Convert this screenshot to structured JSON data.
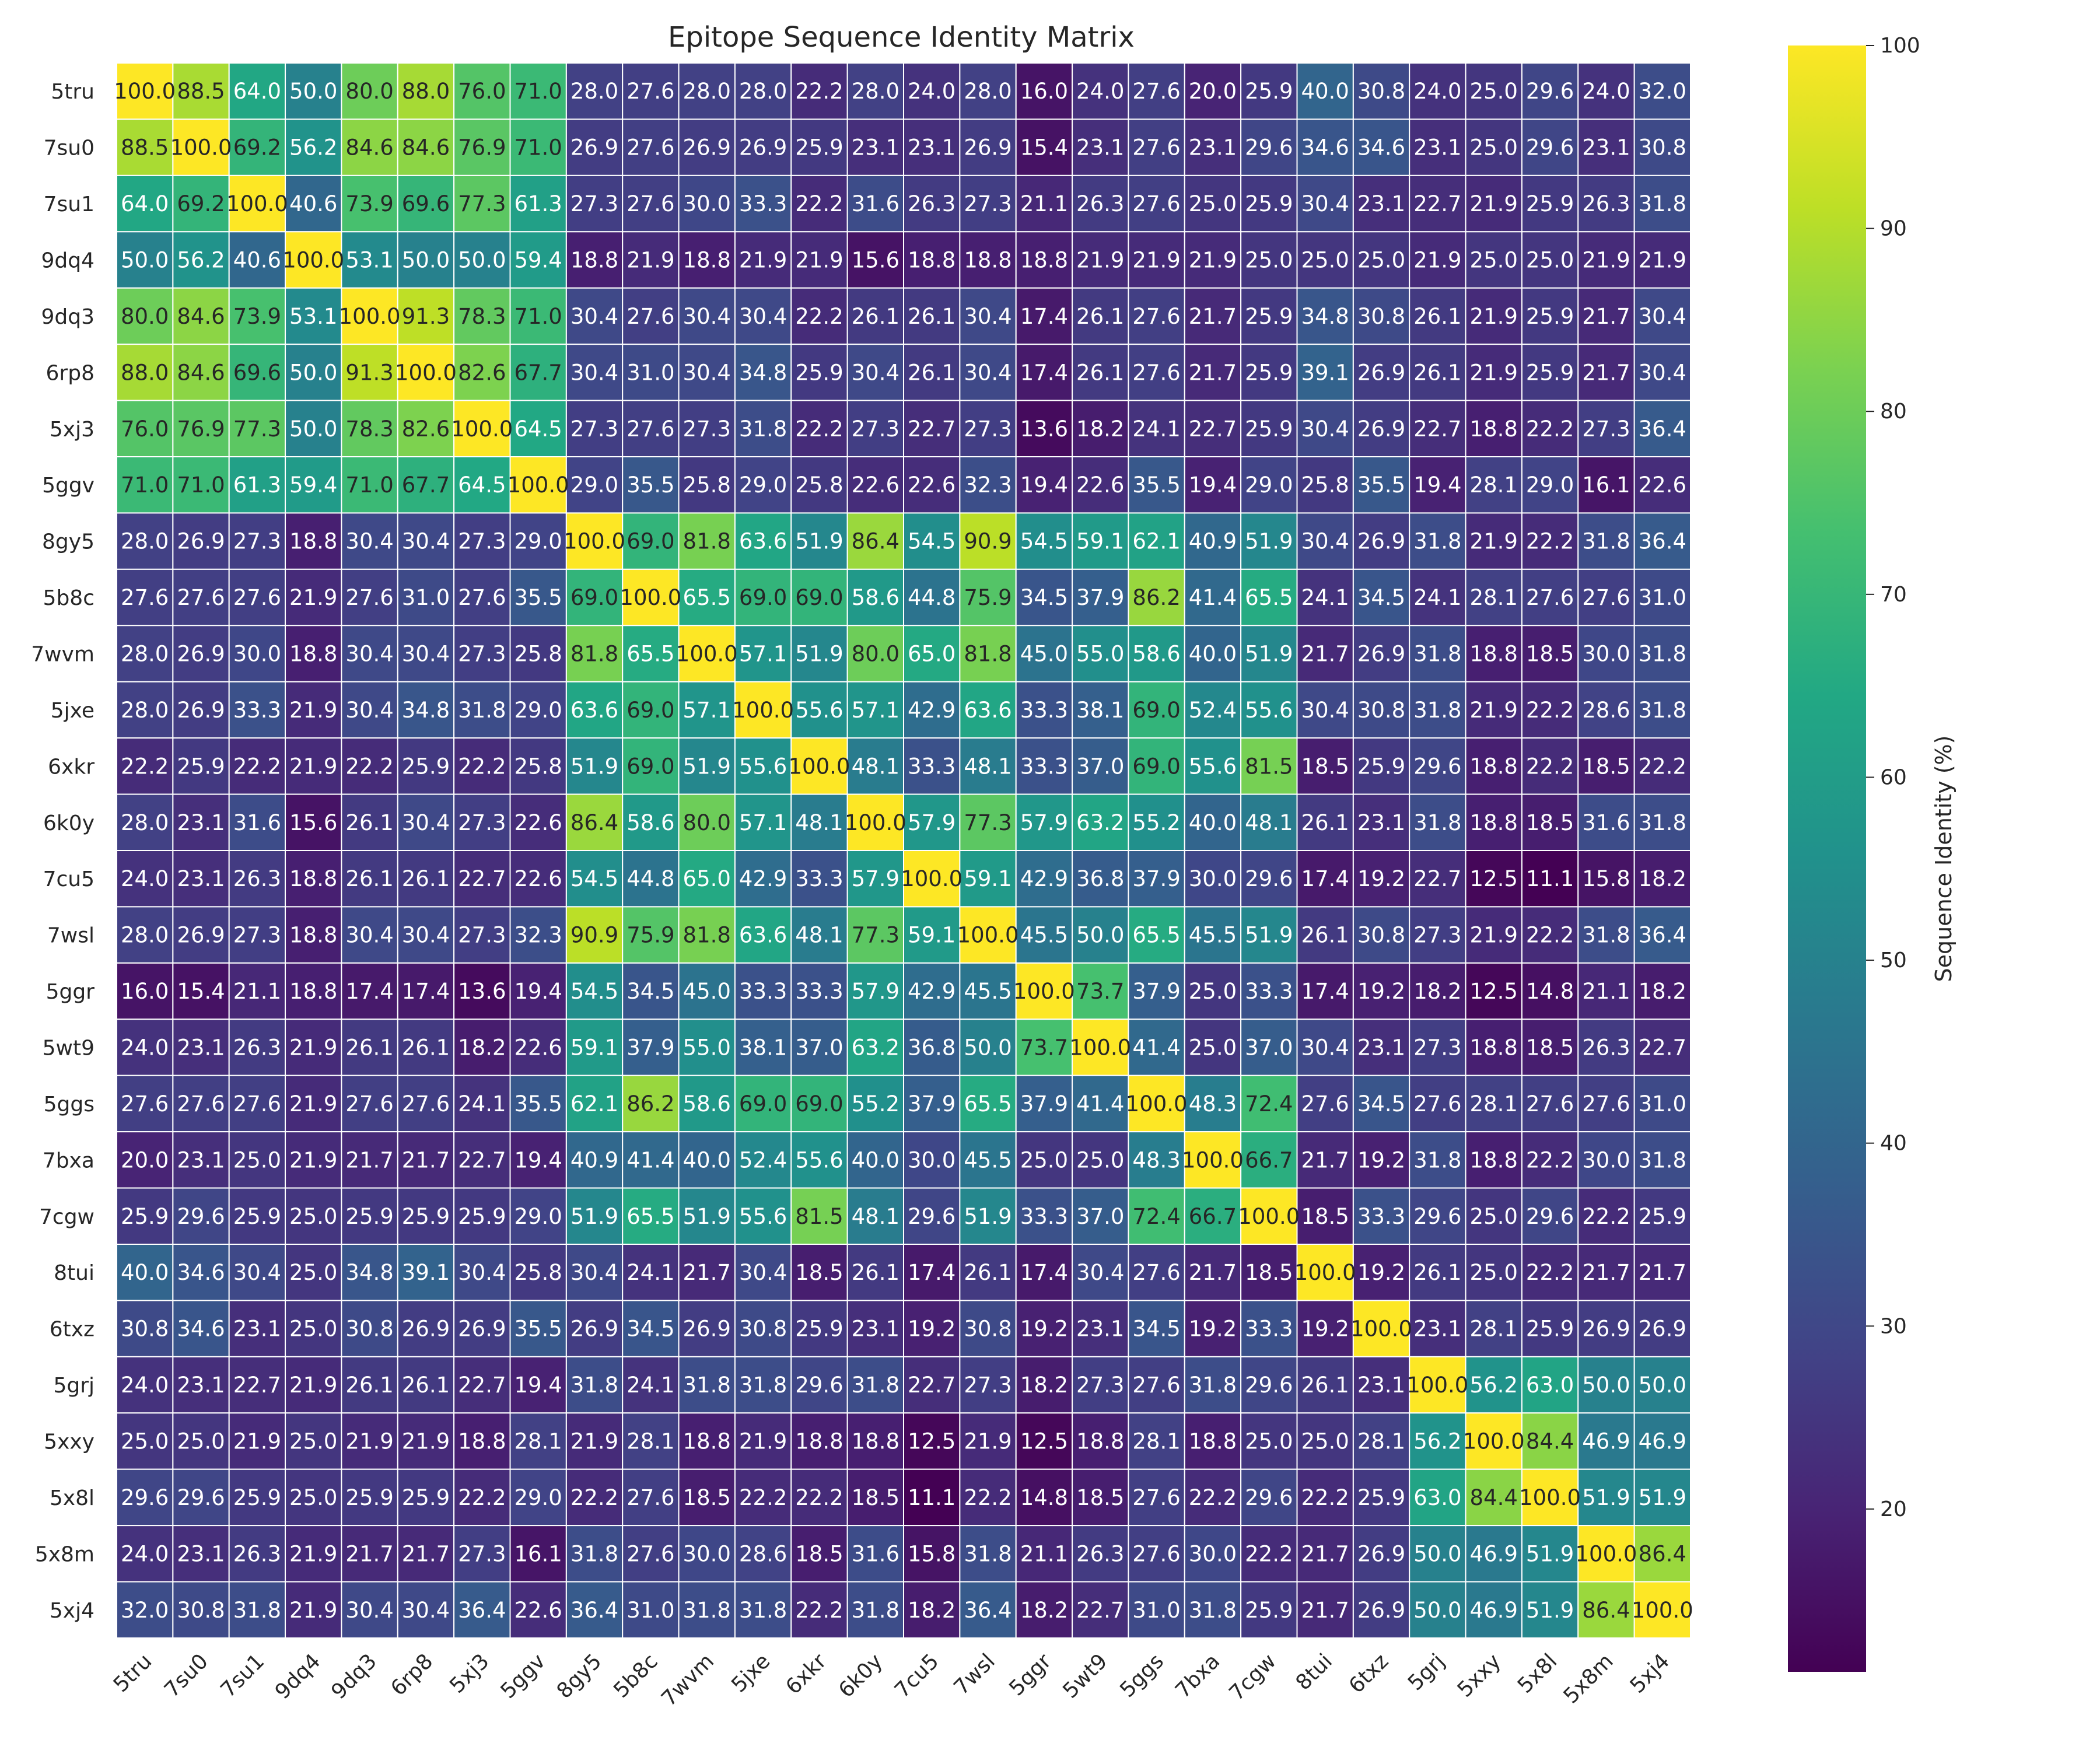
{
  "chart_data": {
    "type": "heatmap",
    "title": "Epitope Sequence Identity Matrix",
    "colorbar_label": "Sequence Identity (%)",
    "colormap": "viridis",
    "value_range": [
      11.1,
      100.0
    ],
    "colorbar_ticks": [
      "20",
      "30",
      "40",
      "50",
      "60",
      "70",
      "80",
      "90",
      "100"
    ],
    "annotation_format": "one decimal",
    "rows": [
      "5tru",
      "7su0",
      "7su1",
      "9dq4",
      "9dq3",
      "6rp8",
      "5xj3",
      "5ggv",
      "8gy5",
      "5b8c",
      "7wvm",
      "5jxe",
      "6xkr",
      "6k0y",
      "7cu5",
      "7wsl",
      "5ggr",
      "5wt9",
      "5ggs",
      "7bxa",
      "7cgw",
      "8tui",
      "6txz",
      "5grj",
      "5xxy",
      "5x8l",
      "5x8m",
      "5xj4"
    ],
    "columns": [
      "5tru",
      "7su0",
      "7su1",
      "9dq4",
      "9dq3",
      "6rp8",
      "5xj3",
      "5ggv",
      "8gy5",
      "5b8c",
      "7wvm",
      "5jxe",
      "6xkr",
      "6k0y",
      "7cu5",
      "7wsl",
      "5ggr",
      "5wt9",
      "5ggs",
      "7bxa",
      "7cgw",
      "8tui",
      "6txz",
      "5grj",
      "5xxy",
      "5x8l",
      "5x8m",
      "5xj4"
    ],
    "values": [
      [
        100.0,
        88.5,
        64.0,
        50.0,
        80.0,
        88.0,
        76.0,
        71.0,
        28.0,
        27.6,
        28.0,
        28.0,
        22.2,
        28.0,
        24.0,
        28.0,
        16.0,
        24.0,
        27.6,
        20.0,
        25.9,
        40.0,
        30.8,
        24.0,
        25.0,
        29.6,
        24.0,
        32.0
      ],
      [
        88.5,
        100.0,
        69.2,
        56.2,
        84.6,
        84.6,
        76.9,
        71.0,
        26.9,
        27.6,
        26.9,
        26.9,
        25.9,
        23.1,
        23.1,
        26.9,
        15.4,
        23.1,
        27.6,
        23.1,
        29.6,
        34.6,
        34.6,
        23.1,
        25.0,
        29.6,
        23.1,
        30.8
      ],
      [
        64.0,
        69.2,
        100.0,
        40.6,
        73.9,
        69.6,
        77.3,
        61.3,
        27.3,
        27.6,
        30.0,
        33.3,
        22.2,
        31.6,
        26.3,
        27.3,
        21.1,
        26.3,
        27.6,
        25.0,
        25.9,
        30.4,
        23.1,
        22.7,
        21.9,
        25.9,
        26.3,
        31.8
      ],
      [
        50.0,
        56.2,
        40.6,
        100.0,
        53.1,
        50.0,
        50.0,
        59.4,
        18.8,
        21.9,
        18.8,
        21.9,
        21.9,
        15.6,
        18.8,
        18.8,
        18.8,
        21.9,
        21.9,
        21.9,
        25.0,
        25.0,
        25.0,
        21.9,
        25.0,
        25.0,
        21.9,
        21.9
      ],
      [
        80.0,
        84.6,
        73.9,
        53.1,
        100.0,
        91.3,
        78.3,
        71.0,
        30.4,
        27.6,
        30.4,
        30.4,
        22.2,
        26.1,
        26.1,
        30.4,
        17.4,
        26.1,
        27.6,
        21.7,
        25.9,
        34.8,
        30.8,
        26.1,
        21.9,
        25.9,
        21.7,
        30.4
      ],
      [
        88.0,
        84.6,
        69.6,
        50.0,
        91.3,
        100.0,
        82.6,
        67.7,
        30.4,
        31.0,
        30.4,
        34.8,
        25.9,
        30.4,
        26.1,
        30.4,
        17.4,
        26.1,
        27.6,
        21.7,
        25.9,
        39.1,
        26.9,
        26.1,
        21.9,
        25.9,
        21.7,
        30.4
      ],
      [
        76.0,
        76.9,
        77.3,
        50.0,
        78.3,
        82.6,
        100.0,
        64.5,
        27.3,
        27.6,
        27.3,
        31.8,
        22.2,
        27.3,
        22.7,
        27.3,
        13.6,
        18.2,
        24.1,
        22.7,
        25.9,
        30.4,
        26.9,
        22.7,
        18.8,
        22.2,
        27.3,
        36.4
      ],
      [
        71.0,
        71.0,
        61.3,
        59.4,
        71.0,
        67.7,
        64.5,
        100.0,
        29.0,
        35.5,
        25.8,
        29.0,
        25.8,
        22.6,
        22.6,
        32.3,
        19.4,
        22.6,
        35.5,
        19.4,
        29.0,
        25.8,
        35.5,
        19.4,
        28.1,
        29.0,
        16.1,
        22.6
      ],
      [
        28.0,
        26.9,
        27.3,
        18.8,
        30.4,
        30.4,
        27.3,
        29.0,
        100.0,
        69.0,
        81.8,
        63.6,
        51.9,
        86.4,
        54.5,
        90.9,
        54.5,
        59.1,
        62.1,
        40.9,
        51.9,
        30.4,
        26.9,
        31.8,
        21.9,
        22.2,
        31.8,
        36.4
      ],
      [
        27.6,
        27.6,
        27.6,
        21.9,
        27.6,
        31.0,
        27.6,
        35.5,
        69.0,
        100.0,
        65.5,
        69.0,
        69.0,
        58.6,
        44.8,
        75.9,
        34.5,
        37.9,
        86.2,
        41.4,
        65.5,
        24.1,
        34.5,
        24.1,
        28.1,
        27.6,
        27.6,
        31.0
      ],
      [
        28.0,
        26.9,
        30.0,
        18.8,
        30.4,
        30.4,
        27.3,
        25.8,
        81.8,
        65.5,
        100.0,
        57.1,
        51.9,
        80.0,
        65.0,
        81.8,
        45.0,
        55.0,
        58.6,
        40.0,
        51.9,
        21.7,
        26.9,
        31.8,
        18.8,
        18.5,
        30.0,
        31.8
      ],
      [
        28.0,
        26.9,
        33.3,
        21.9,
        30.4,
        34.8,
        31.8,
        29.0,
        63.6,
        69.0,
        57.1,
        100.0,
        55.6,
        57.1,
        42.9,
        63.6,
        33.3,
        38.1,
        69.0,
        52.4,
        55.6,
        30.4,
        30.8,
        31.8,
        21.9,
        22.2,
        28.6,
        31.8
      ],
      [
        22.2,
        25.9,
        22.2,
        21.9,
        22.2,
        25.9,
        22.2,
        25.8,
        51.9,
        69.0,
        51.9,
        55.6,
        100.0,
        48.1,
        33.3,
        48.1,
        33.3,
        37.0,
        69.0,
        55.6,
        81.5,
        18.5,
        25.9,
        29.6,
        18.8,
        22.2,
        18.5,
        22.2
      ],
      [
        28.0,
        23.1,
        31.6,
        15.6,
        26.1,
        30.4,
        27.3,
        22.6,
        86.4,
        58.6,
        80.0,
        57.1,
        48.1,
        100.0,
        57.9,
        77.3,
        57.9,
        63.2,
        55.2,
        40.0,
        48.1,
        26.1,
        23.1,
        31.8,
        18.8,
        18.5,
        31.6,
        31.8
      ],
      [
        24.0,
        23.1,
        26.3,
        18.8,
        26.1,
        26.1,
        22.7,
        22.6,
        54.5,
        44.8,
        65.0,
        42.9,
        33.3,
        57.9,
        100.0,
        59.1,
        42.9,
        36.8,
        37.9,
        30.0,
        29.6,
        17.4,
        19.2,
        22.7,
        12.5,
        11.1,
        15.8,
        18.2
      ],
      [
        28.0,
        26.9,
        27.3,
        18.8,
        30.4,
        30.4,
        27.3,
        32.3,
        90.9,
        75.9,
        81.8,
        63.6,
        48.1,
        77.3,
        59.1,
        100.0,
        45.5,
        50.0,
        65.5,
        45.5,
        51.9,
        26.1,
        30.8,
        27.3,
        21.9,
        22.2,
        31.8,
        36.4
      ],
      [
        16.0,
        15.4,
        21.1,
        18.8,
        17.4,
        17.4,
        13.6,
        19.4,
        54.5,
        34.5,
        45.0,
        33.3,
        33.3,
        57.9,
        42.9,
        45.5,
        100.0,
        73.7,
        37.9,
        25.0,
        33.3,
        17.4,
        19.2,
        18.2,
        12.5,
        14.8,
        21.1,
        18.2
      ],
      [
        24.0,
        23.1,
        26.3,
        21.9,
        26.1,
        26.1,
        18.2,
        22.6,
        59.1,
        37.9,
        55.0,
        38.1,
        37.0,
        63.2,
        36.8,
        50.0,
        73.7,
        100.0,
        41.4,
        25.0,
        37.0,
        30.4,
        23.1,
        27.3,
        18.8,
        18.5,
        26.3,
        22.7
      ],
      [
        27.6,
        27.6,
        27.6,
        21.9,
        27.6,
        27.6,
        24.1,
        35.5,
        62.1,
        86.2,
        58.6,
        69.0,
        69.0,
        55.2,
        37.9,
        65.5,
        37.9,
        41.4,
        100.0,
        48.3,
        72.4,
        27.6,
        34.5,
        27.6,
        28.1,
        27.6,
        27.6,
        31.0
      ],
      [
        20.0,
        23.1,
        25.0,
        21.9,
        21.7,
        21.7,
        22.7,
        19.4,
        40.9,
        41.4,
        40.0,
        52.4,
        55.6,
        40.0,
        30.0,
        45.5,
        25.0,
        25.0,
        48.3,
        100.0,
        66.7,
        21.7,
        19.2,
        31.8,
        18.8,
        22.2,
        30.0,
        31.8
      ],
      [
        25.9,
        29.6,
        25.9,
        25.0,
        25.9,
        25.9,
        25.9,
        29.0,
        51.9,
        65.5,
        51.9,
        55.6,
        81.5,
        48.1,
        29.6,
        51.9,
        33.3,
        37.0,
        72.4,
        66.7,
        100.0,
        18.5,
        33.3,
        29.6,
        25.0,
        29.6,
        22.2,
        25.9
      ],
      [
        40.0,
        34.6,
        30.4,
        25.0,
        34.8,
        39.1,
        30.4,
        25.8,
        30.4,
        24.1,
        21.7,
        30.4,
        18.5,
        26.1,
        17.4,
        26.1,
        17.4,
        30.4,
        27.6,
        21.7,
        18.5,
        100.0,
        19.2,
        26.1,
        25.0,
        22.2,
        21.7,
        21.7
      ],
      [
        30.8,
        34.6,
        23.1,
        25.0,
        30.8,
        26.9,
        26.9,
        35.5,
        26.9,
        34.5,
        26.9,
        30.8,
        25.9,
        23.1,
        19.2,
        30.8,
        19.2,
        23.1,
        34.5,
        19.2,
        33.3,
        19.2,
        100.0,
        23.1,
        28.1,
        25.9,
        26.9,
        26.9
      ],
      [
        24.0,
        23.1,
        22.7,
        21.9,
        26.1,
        26.1,
        22.7,
        19.4,
        31.8,
        24.1,
        31.8,
        31.8,
        29.6,
        31.8,
        22.7,
        27.3,
        18.2,
        27.3,
        27.6,
        31.8,
        29.6,
        26.1,
        23.1,
        100.0,
        56.2,
        63.0,
        50.0,
        50.0
      ],
      [
        25.0,
        25.0,
        21.9,
        25.0,
        21.9,
        21.9,
        18.8,
        28.1,
        21.9,
        28.1,
        18.8,
        21.9,
        18.8,
        18.8,
        12.5,
        21.9,
        12.5,
        18.8,
        28.1,
        18.8,
        25.0,
        25.0,
        28.1,
        56.2,
        100.0,
        84.4,
        46.9,
        46.9
      ],
      [
        29.6,
        29.6,
        25.9,
        25.0,
        25.9,
        25.9,
        22.2,
        29.0,
        22.2,
        27.6,
        18.5,
        22.2,
        22.2,
        18.5,
        11.1,
        22.2,
        14.8,
        18.5,
        27.6,
        22.2,
        29.6,
        22.2,
        25.9,
        63.0,
        84.4,
        100.0,
        51.9,
        51.9
      ],
      [
        24.0,
        23.1,
        26.3,
        21.9,
        21.7,
        21.7,
        27.3,
        16.1,
        31.8,
        27.6,
        30.0,
        28.6,
        18.5,
        31.6,
        15.8,
        31.8,
        21.1,
        26.3,
        27.6,
        30.0,
        22.2,
        21.7,
        26.9,
        50.0,
        46.9,
        51.9,
        100.0,
        86.4
      ],
      [
        32.0,
        30.8,
        31.8,
        21.9,
        30.4,
        30.4,
        36.4,
        22.6,
        36.4,
        31.0,
        31.8,
        31.8,
        22.2,
        31.8,
        18.2,
        36.4,
        18.2,
        22.7,
        31.0,
        31.8,
        25.9,
        21.7,
        26.9,
        50.0,
        46.9,
        51.9,
        86.4,
        100.0
      ]
    ]
  }
}
